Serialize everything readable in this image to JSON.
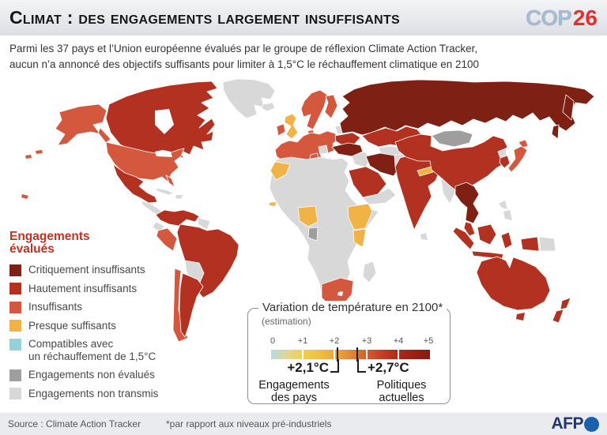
{
  "header": {
    "title": "Climat : des engagements largement insuffisants",
    "logo_cop": "COP",
    "logo_num": "26"
  },
  "subtitle": {
    "line1": "Parmi les 37 pays et l’Union européenne évalués par le groupe de réflexion Climate Action Tracker,",
    "line2": "aucun n’a annoncé des objectifs suffisants pour limiter à 1,5°C le réchauffement climatique en 2100"
  },
  "legend": {
    "heading_line1": "Engagements",
    "heading_line2": "évalués",
    "items": [
      {
        "lines": [
          "Critiquement insuffisants",
          ""
        ],
        "color": "#7e2014"
      },
      {
        "lines": [
          "Hautement insuffisants",
          ""
        ],
        "color": "#b23120"
      },
      {
        "lines": [
          "Insuffisants",
          ""
        ],
        "color": "#d4583d"
      },
      {
        "lines": [
          "Presque suffisants",
          ""
        ],
        "color": "#f2b346"
      },
      {
        "lines": [
          "Compatibles avec",
          "un réchauffement de 1,5°C"
        ],
        "color": "#94d1da"
      },
      {
        "lines": [
          "Engagements non évalués",
          ""
        ],
        "color": "#9e9e9e"
      },
      {
        "lines": [
          "Engagements non transmis",
          ""
        ],
        "color": "#d8d8d8"
      }
    ]
  },
  "scale_box": {
    "title": "Variation de température en 2100*",
    "subtitle": "(estimation)",
    "ticks": [
      "0",
      "+1",
      "+2",
      "+3",
      "+4",
      "+5"
    ],
    "gradient": [
      "#b5dae2",
      "#e0d795",
      "#eed04d",
      "#f0c043",
      "#eca93c",
      "#e18a36",
      "#d55c2e",
      "#c43d22",
      "#ad2b19",
      "#992114",
      "#871c0f"
    ],
    "markers": [
      {
        "value": "+2,1°C",
        "label_line1": "Engagements",
        "label_line2": "des pays",
        "position_pct": 42
      },
      {
        "value": "+2,7°C",
        "label_line1": "Politiques",
        "label_line2": "actuelles",
        "position_pct": 54
      }
    ]
  },
  "footer": {
    "source": "Source : Climate Action Tracker",
    "note": "*par rapport aux niveaux pré-industriels",
    "brand": "AFP"
  },
  "map_data": {
    "type": "choropleth",
    "palette": {
      "critiquement_insuffisants": "#7e2014",
      "hautement_insuffisants": "#b23120",
      "insuffisants": "#d4583d",
      "presque_suffisants": "#f2b346",
      "compatibles_15c": "#94d1da",
      "non_evalues": "#9e9e9e",
      "non_transmis": "#d8d8d8"
    },
    "regions": {
      "greenland": "non_transmis",
      "iceland": "non_transmis",
      "alaska": "insuffisants",
      "aleutians": "insuffisants",
      "hawaii": "insuffisants",
      "canada": "hautement_insuffisants",
      "usa": "insuffisants",
      "mexico": "hautement_insuffisants",
      "central_america": "non_transmis",
      "costa_rica": "presque_suffisants",
      "caribbean": "non_transmis",
      "colombia_venezuela": "hautement_insuffisants",
      "guyanas": "non_transmis",
      "ecuador": "non_transmis",
      "peru": "insuffisants",
      "brazil": "hautement_insuffisants",
      "bolivia_paraguay": "non_transmis",
      "chile": "insuffisants",
      "argentina": "hautement_insuffisants",
      "scandinavia": "insuffisants",
      "finland": "insuffisants",
      "denmark": "insuffisants",
      "uk": "presque_suffisants",
      "ireland": "insuffisants",
      "eu_continental": "insuffisants",
      "italy": "insuffisants",
      "greece": "insuffisants",
      "balkans": "non_transmis",
      "belarus": "non_transmis",
      "ukraine": "hautement_insuffisants",
      "russia": "critiquement_insuffisants",
      "kazakhstan": "hautement_insuffisants",
      "central_asia": "non_transmis",
      "caucasus_iraq": "non_transmis",
      "turkey": "critiquement_insuffisants",
      "iran": "critiquement_insuffisants",
      "afghanistan_pakistan": "non_transmis",
      "saudi_arabia": "hautement_insuffisants",
      "yemen_oman": "non_transmis",
      "india": "hautement_insuffisants",
      "nepal": "presque_suffisants",
      "sri_lanka": "non_transmis",
      "myanmar": "non_transmis",
      "china": "hautement_insuffisants",
      "mongolia": "non_evalues",
      "north_korea": "non_transmis",
      "south_korea": "hautement_insuffisants",
      "japan": "insuffisants",
      "southeast_asia": "critiquement_insuffisants",
      "malaysia": "hautement_insuffisants",
      "philippines": "non_transmis",
      "indonesia": "hautement_insuffisants",
      "papua_new_guinea": "non_transmis",
      "australia": "hautement_insuffisants",
      "tasmania": "hautement_insuffisants",
      "new_zealand": "hautement_insuffisants",
      "africa": "non_transmis",
      "morocco": "presque_suffisants",
      "gambia": "presque_suffisants",
      "nigeria": "presque_suffisants",
      "ethiopia": "presque_suffisants",
      "kenya": "presque_suffisants",
      "gabon": "non_evalues",
      "south_africa": "insuffisants",
      "madagascar": "non_transmis"
    }
  }
}
